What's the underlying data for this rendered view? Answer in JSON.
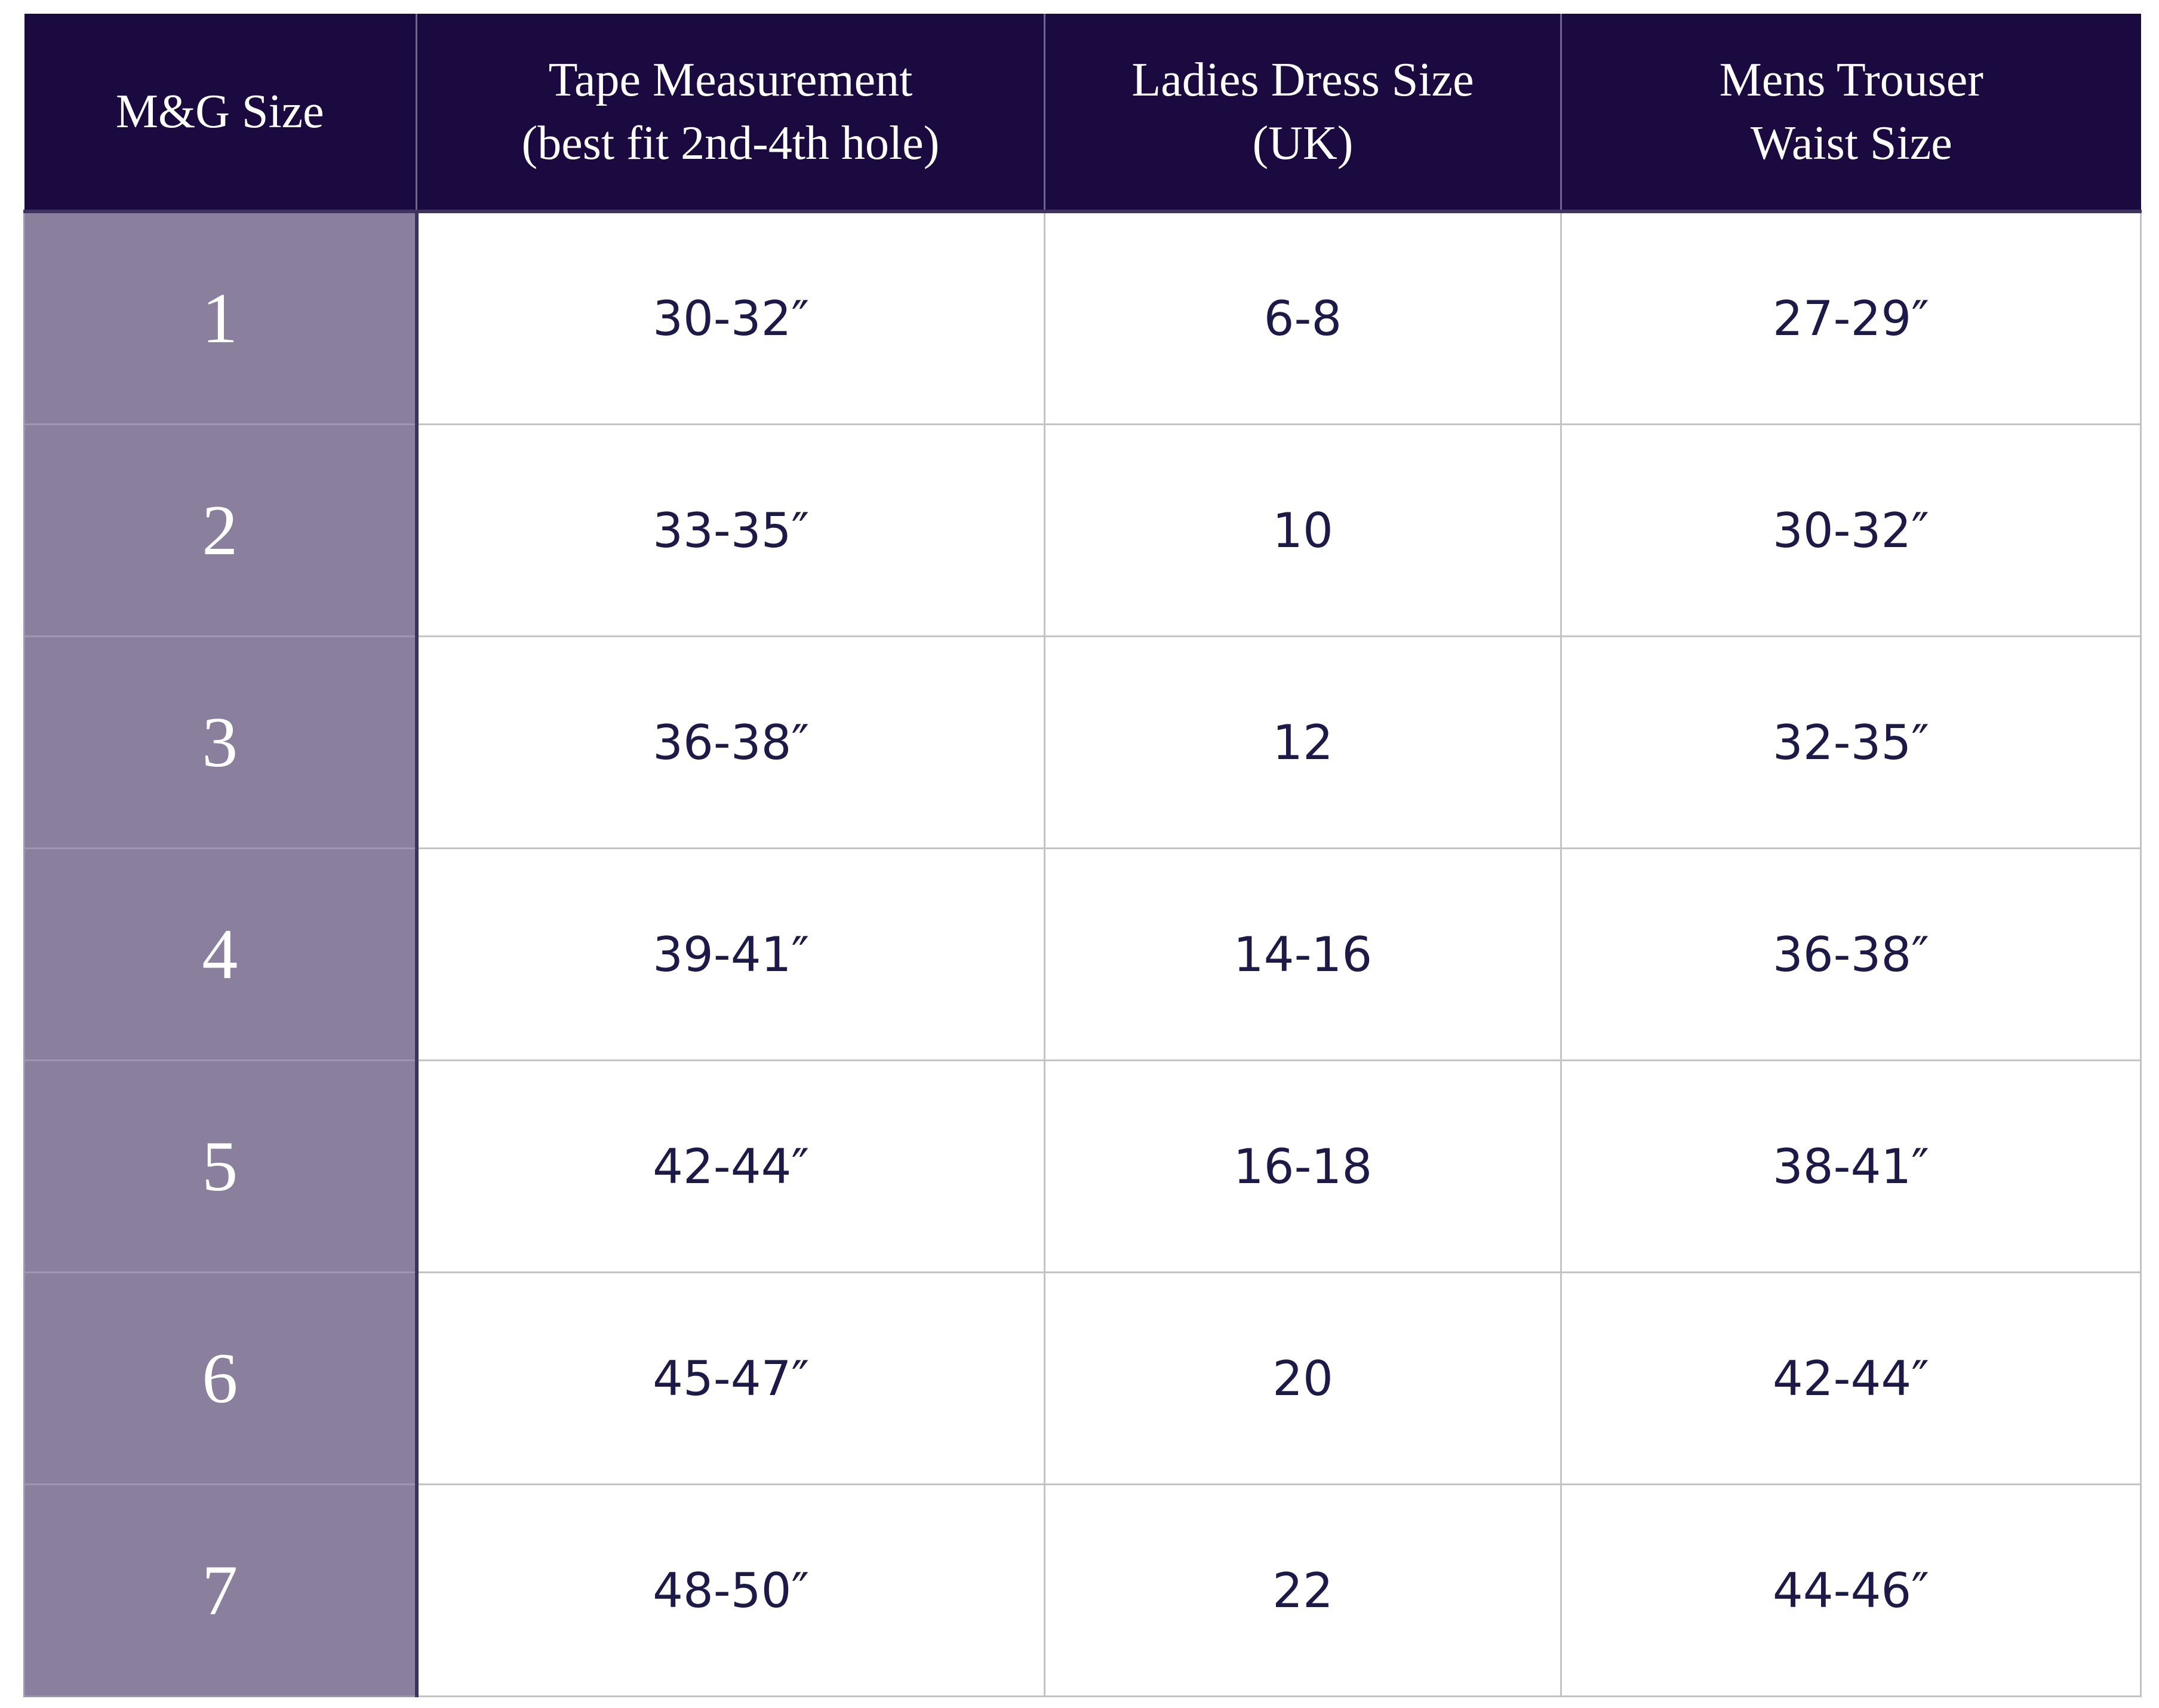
{
  "table": {
    "headers": [
      [
        "M&G Size"
      ],
      [
        "Tape Measurement",
        "(best fit 2nd-4th hole)"
      ],
      [
        "Ladies Dress Size",
        "(UK)"
      ],
      [
        "Mens Trouser",
        "Waist Size"
      ]
    ],
    "rows": [
      [
        "1",
        "30-32″",
        "6-8",
        "27-29″"
      ],
      [
        "2",
        "33-35″",
        "10",
        "30-32″"
      ],
      [
        "3",
        "36-38″",
        "12",
        "32-35″"
      ],
      [
        "4",
        "39-41″",
        "14-16",
        "36-38″"
      ],
      [
        "5",
        "42-44″",
        "16-18",
        "38-41″"
      ],
      [
        "6",
        "45-47″",
        "20",
        "42-44″"
      ],
      [
        "7",
        "48-50″",
        "22",
        "44-46″"
      ]
    ]
  }
}
